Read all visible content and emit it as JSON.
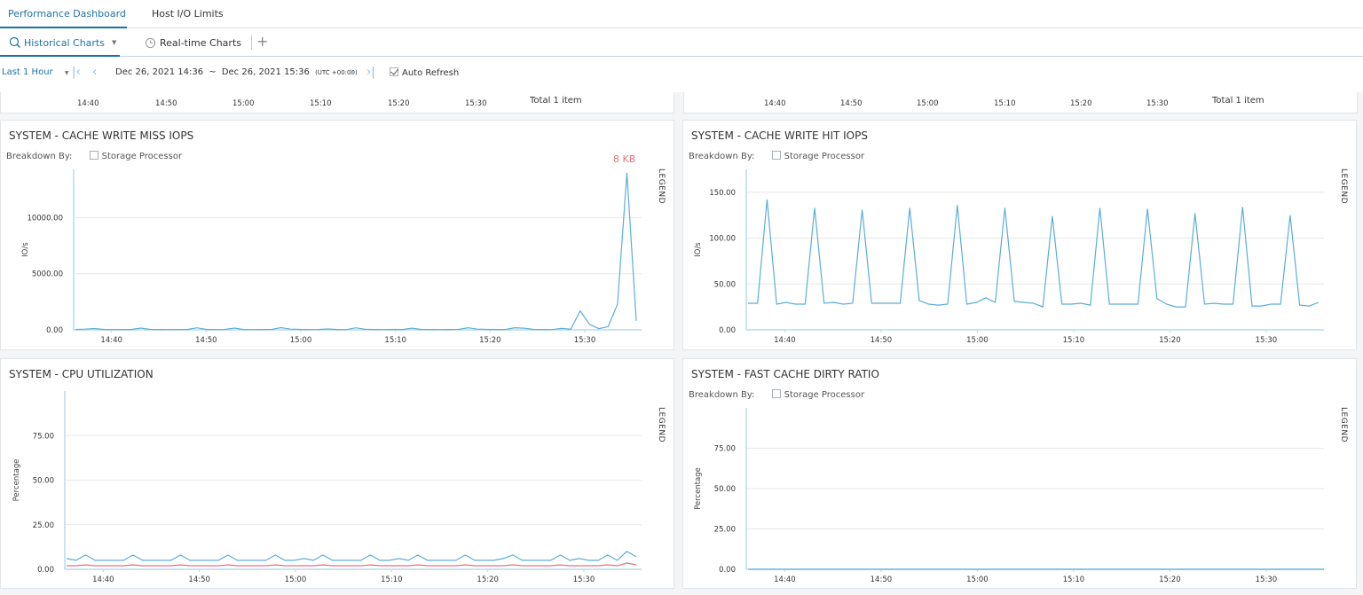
{
  "top_tabs": [
    {
      "label": "Performance Dashboard",
      "active": true
    },
    {
      "label": "Host I/O Limits",
      "active": false
    }
  ],
  "sub_tabs": [
    {
      "label": "Historical Charts",
      "active": true,
      "icon": "search-icon",
      "has_dropdown": true
    },
    {
      "label": "Real-time Charts",
      "active": false,
      "icon": "clock-icon"
    }
  ],
  "toolbar": {
    "range": "Last 1 Hour",
    "start": "Dec 26, 2021 14:36",
    "separator": "~",
    "end": "Dec 26, 2021 15:36",
    "timezone": "(UTC +00:00)",
    "auto_refresh_label": "Auto Refresh",
    "auto_refresh_checked": true
  },
  "strip": {
    "ticks": [
      "14:40",
      "14:50",
      "15:00",
      "15:10",
      "15:20",
      "15:30"
    ],
    "total_left": "Total 1 item",
    "total_right": "Total 1 item"
  },
  "common": {
    "breakdown_label": "Breakdown By:",
    "storage_processor_label": "Storage Processor",
    "legend_label": "LEGEND"
  },
  "colors": {
    "accent": "#1a73a8",
    "series_blue": "#5aaed6",
    "series_pink": "#e8737a",
    "badge": "#e8737a"
  },
  "chart_data": [
    {
      "title": "SYSTEM - CACHE WRITE MISS IOPS",
      "type": "line",
      "has_breakdown": true,
      "badge": "8 KB",
      "ylabel": "IO/s",
      "ylim": [
        0,
        14300
      ],
      "yticks": [
        0,
        5000,
        10000
      ],
      "ytick_labels": [
        "0.00",
        "5000.00",
        "10000.00"
      ],
      "xticks": [
        "14:40",
        "14:50",
        "15:00",
        "15:10",
        "15:20",
        "15:30"
      ],
      "series": [
        {
          "color": "#5aaed6",
          "values": [
            30,
            60,
            120,
            40,
            20,
            30,
            40,
            160,
            40,
            30,
            20,
            30,
            40,
            180,
            40,
            20,
            30,
            160,
            30,
            20,
            30,
            40,
            200,
            60,
            40,
            20,
            30,
            80,
            30,
            20,
            180,
            50,
            30,
            20,
            40,
            30,
            150,
            40,
            30,
            20,
            30,
            40,
            190,
            60,
            40,
            30,
            30,
            190,
            150,
            40,
            30,
            20,
            130,
            60,
            1700,
            500,
            100,
            300,
            2300,
            14000,
            800
          ]
        }
      ]
    },
    {
      "title": "SYSTEM - CACHE WRITE HIT IOPS",
      "type": "line",
      "has_breakdown": true,
      "ylabel": "IO/s",
      "ylim": [
        0,
        175
      ],
      "yticks": [
        0,
        50,
        100,
        150
      ],
      "ytick_labels": [
        "0.00",
        "50.00",
        "100.00",
        "150.00"
      ],
      "xticks": [
        "14:40",
        "14:50",
        "15:00",
        "15:10",
        "15:20",
        "15:30"
      ],
      "series": [
        {
          "color": "#5aaed6",
          "values": [
            29,
            29,
            142,
            28,
            30,
            28,
            28,
            133,
            29,
            30,
            28,
            29,
            131,
            29,
            29,
            29,
            29,
            133,
            32,
            28,
            27,
            28,
            136,
            28,
            30,
            35,
            30,
            133,
            31,
            30,
            29,
            25,
            124,
            28,
            28,
            29,
            27,
            133,
            28,
            28,
            28,
            28,
            132,
            34,
            28,
            25,
            25,
            127,
            28,
            29,
            28,
            28,
            134,
            26,
            26,
            28,
            28,
            125,
            27,
            26,
            30
          ]
        }
      ]
    },
    {
      "title": "SYSTEM - CPU UTILIZATION",
      "type": "line",
      "has_breakdown": false,
      "ylabel": "Percentage",
      "ylim": [
        0,
        100
      ],
      "yticks": [
        0,
        25,
        50,
        75
      ],
      "ytick_labels": [
        "0.00",
        "25.00",
        "50.00",
        "75.00"
      ],
      "xticks": [
        "14:40",
        "14:50",
        "15:00",
        "15:10",
        "15:20",
        "15:30"
      ],
      "series": [
        {
          "color": "#5aaed6",
          "values": [
            6,
            5,
            8,
            5,
            5,
            5,
            5,
            8,
            5,
            5,
            5,
            5,
            8,
            5,
            5,
            5,
            5,
            8,
            5,
            5,
            5,
            5,
            8,
            5,
            5,
            6,
            5,
            8,
            5,
            5,
            5,
            5,
            8,
            5,
            5,
            6,
            5,
            8,
            5,
            5,
            5,
            5,
            8,
            5,
            5,
            5,
            6,
            8,
            5,
            5,
            5,
            5,
            8,
            5,
            6,
            5,
            5,
            8,
            5,
            10,
            7
          ]
        },
        {
          "color": "#e8737a",
          "values": [
            2,
            2,
            2.5,
            2,
            2,
            2,
            2,
            2.5,
            2,
            2,
            2,
            2,
            2.5,
            2,
            2,
            2,
            2,
            2.5,
            2,
            2,
            2,
            2,
            2.5,
            2,
            2,
            2,
            2,
            2.5,
            2,
            2,
            2,
            2,
            2.5,
            2,
            2,
            2,
            2,
            2.5,
            2,
            2,
            2,
            2,
            2.5,
            2,
            2,
            2,
            2,
            2.5,
            2,
            2,
            2,
            2,
            2.5,
            2,
            2,
            2,
            2,
            2.5,
            2,
            3.5,
            2.5
          ]
        }
      ]
    },
    {
      "title": "SYSTEM - FAST CACHE DIRTY RATIO",
      "type": "line",
      "has_breakdown": true,
      "ylabel": "Percentage",
      "ylim": [
        0,
        100
      ],
      "yticks": [
        0,
        25,
        50,
        75
      ],
      "ytick_labels": [
        "0.00",
        "25.00",
        "50.00",
        "75.00"
      ],
      "xticks": [
        "14:40",
        "14:50",
        "15:00",
        "15:10",
        "15:20",
        "15:30"
      ],
      "series": [
        {
          "color": "#5aaed6",
          "values": [
            0,
            0
          ]
        }
      ]
    }
  ]
}
